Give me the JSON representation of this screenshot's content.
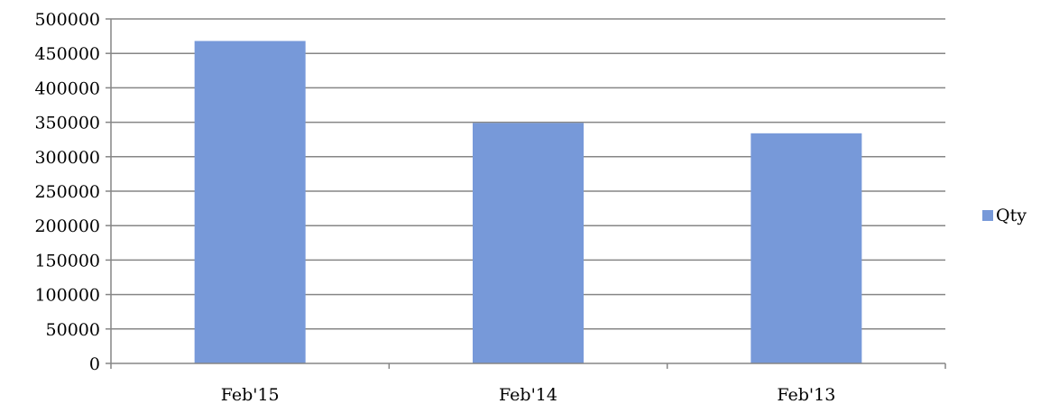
{
  "chart_data": {
    "type": "bar",
    "categories": [
      "Feb'15",
      "Feb'14",
      "Feb'13"
    ],
    "series": [
      {
        "name": "Qty",
        "values": [
          468000,
          349000,
          334000
        ],
        "color": "#7799d9"
      }
    ],
    "title": "",
    "xlabel": "",
    "ylabel": "",
    "ylim": [
      0,
      500000
    ],
    "yticks": [
      0,
      50000,
      100000,
      150000,
      200000,
      250000,
      300000,
      350000,
      400000,
      450000,
      500000
    ],
    "grid": true,
    "legend": "right"
  }
}
